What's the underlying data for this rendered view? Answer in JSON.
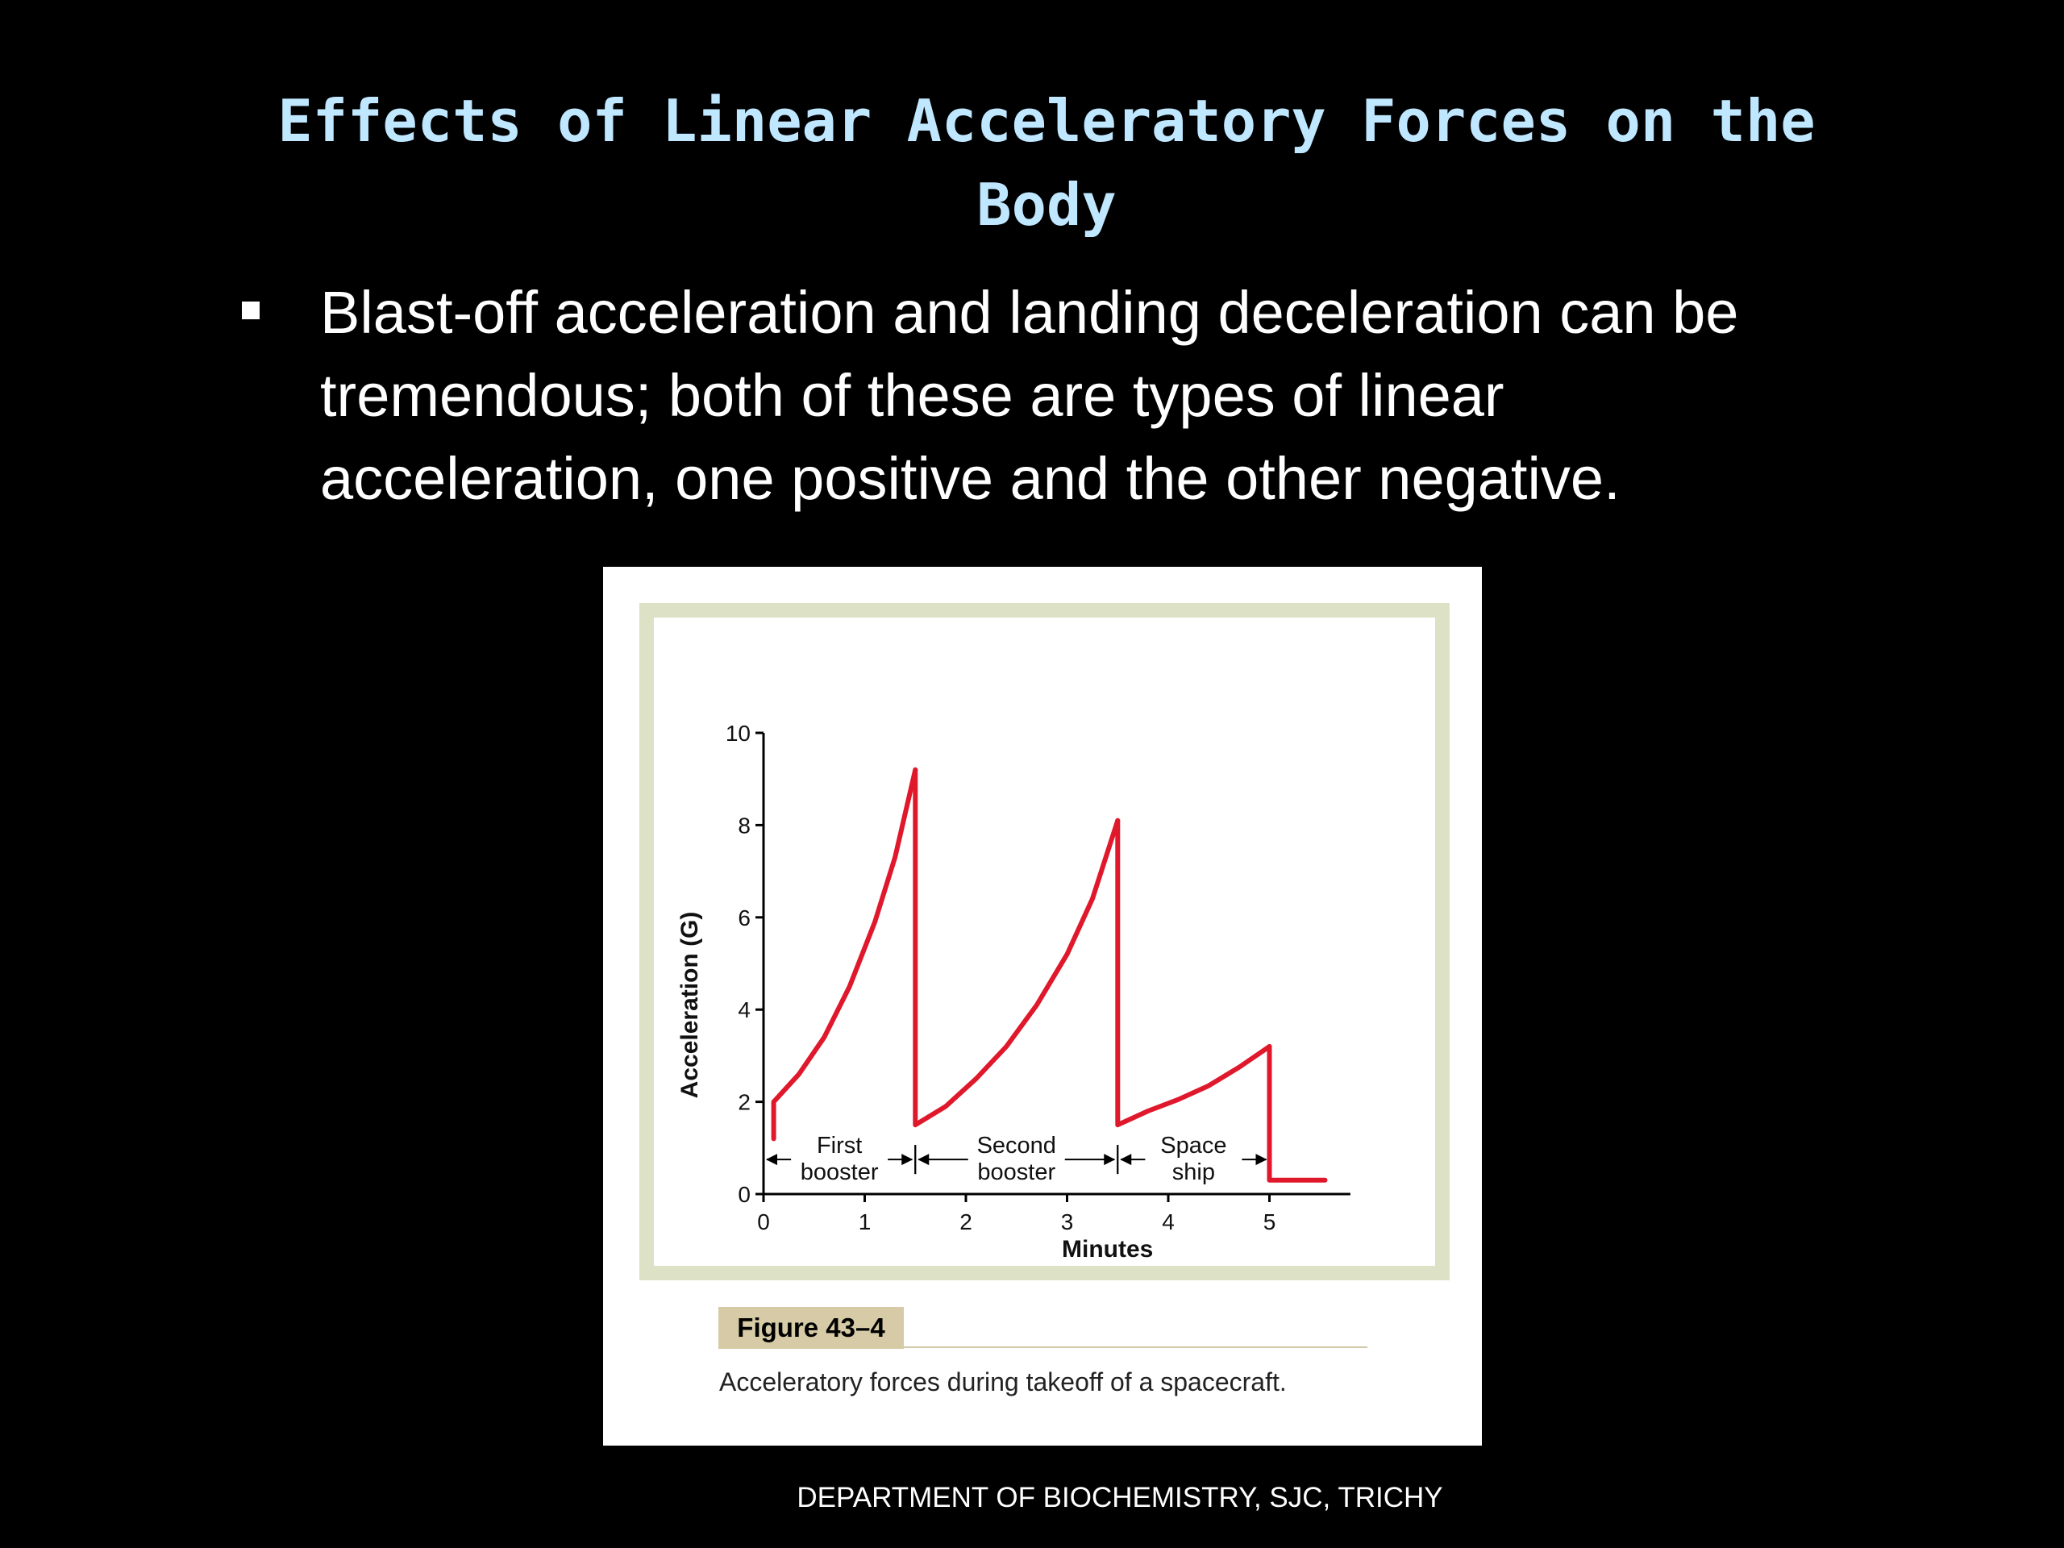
{
  "slide": {
    "title": "Effects of Linear Acceleratory Forces on the Body",
    "bullet": "Blast-off acceleration and landing deceleration can be tremendous; both of these are types of linear acceleration, one positive and the other negative.",
    "footer": "DEPARTMENT OF BIOCHEMISTRY, SJC, TRICHY"
  },
  "figure": {
    "label": "Figure 43–4",
    "caption": "Acceleratory forces during takeoff of a spacecraft."
  },
  "chart_data": {
    "type": "line",
    "title": "",
    "xlabel": "Minutes",
    "ylabel": "Acceleration (G)",
    "xlim": [
      0,
      5.8
    ],
    "ylim": [
      0,
      10
    ],
    "xticks": [
      0,
      1,
      2,
      3,
      4,
      5
    ],
    "yticks": [
      0,
      2,
      4,
      6,
      8,
      10
    ],
    "grid": false,
    "line_color": "#e0182c",
    "series": [
      {
        "segments": [
          {
            "x": [
              0.1,
              0.1,
              0.35,
              0.6,
              0.85,
              1.1,
              1.3,
              1.5
            ],
            "y": [
              1.2,
              2.0,
              2.6,
              3.4,
              4.5,
              5.9,
              7.3,
              9.2
            ]
          },
          {
            "x": [
              1.5,
              1.5,
              1.8,
              2.1,
              2.4,
              2.7,
              3.0,
              3.25,
              3.5
            ],
            "y": [
              9.2,
              1.5,
              1.9,
              2.5,
              3.2,
              4.1,
              5.2,
              6.4,
              8.1
            ]
          },
          {
            "x": [
              3.5,
              3.5,
              3.8,
              4.1,
              4.4,
              4.7,
              5.0
            ],
            "y": [
              8.1,
              1.5,
              1.8,
              2.05,
              2.35,
              2.75,
              3.2
            ]
          },
          {
            "x": [
              5.0,
              5.0,
              5.55
            ],
            "y": [
              3.2,
              0.3,
              0.3
            ]
          }
        ]
      }
    ],
    "phases": [
      {
        "label_line1": "First",
        "label_line2": "booster",
        "from": 0,
        "to": 1.5
      },
      {
        "label_line1": "Second",
        "label_line2": "booster",
        "from": 1.5,
        "to": 3.5
      },
      {
        "label_line1": "Space",
        "label_line2": "ship",
        "from": 3.5,
        "to": 5.0
      }
    ]
  }
}
